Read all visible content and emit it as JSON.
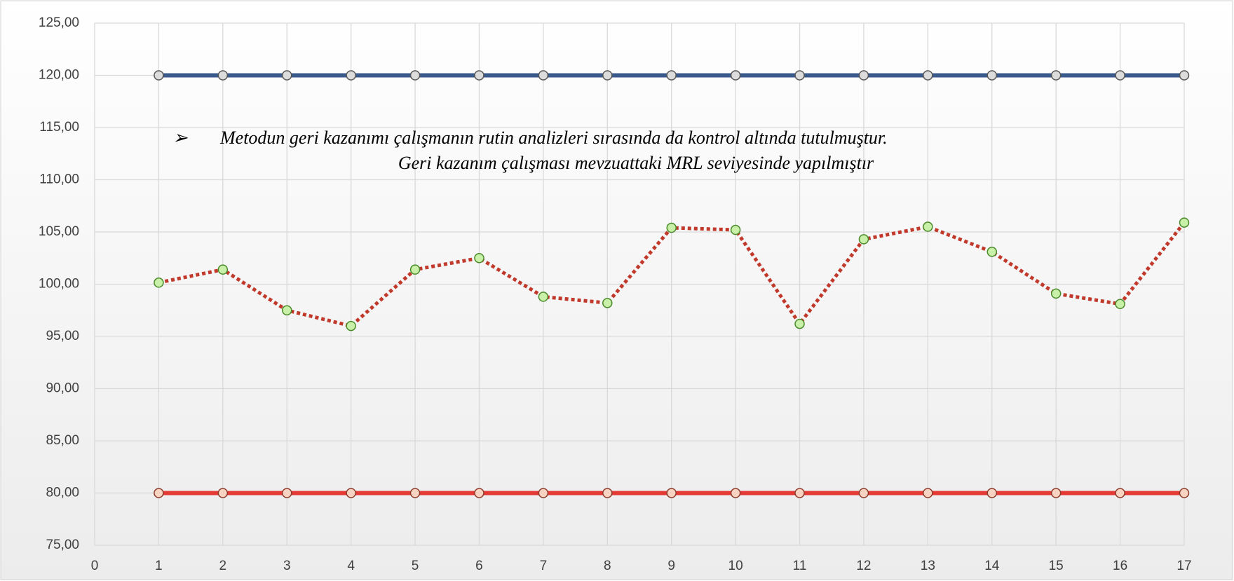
{
  "chart_data": {
    "type": "line",
    "annotation": {
      "bullet": "➢",
      "lines": [
        "Metodun geri kazanımı çalışmanın rutin analizleri sırasında da kontrol altında tutulmuştur.",
        "Geri  kazanım çalışması mevzuattaki MRL seviyesinde yapılmıştır"
      ]
    },
    "x": [
      1,
      2,
      3,
      4,
      5,
      6,
      7,
      8,
      9,
      10,
      11,
      12,
      13,
      14,
      15,
      16,
      17
    ],
    "series": [
      {
        "color": "#3b5a8c",
        "style": "solid",
        "marker_fill": "#dcdcdc",
        "marker_stroke": "#555555",
        "values": [
          120,
          120,
          120,
          120,
          120,
          120,
          120,
          120,
          120,
          120,
          120,
          120,
          120,
          120,
          120,
          120,
          120
        ]
      },
      {
        "color": "#e53935",
        "style": "solid",
        "marker_fill": "#f9d3c2",
        "marker_stroke": "#8b3a2a",
        "values": [
          80,
          80,
          80,
          80,
          80,
          80,
          80,
          80,
          80,
          80,
          80,
          80,
          80,
          80,
          80,
          80,
          80
        ]
      },
      {
        "color": "#c0392b",
        "style": "dotted",
        "marker_fill": "#c9f0a8",
        "marker_stroke": "#4a8a2a",
        "values": [
          100.15,
          101.4,
          97.5,
          96.0,
          101.4,
          102.5,
          98.8,
          98.2,
          105.4,
          105.2,
          96.2,
          104.3,
          105.5,
          103.1,
          99.1,
          98.1,
          105.9
        ]
      }
    ],
    "xlim": [
      0,
      17
    ],
    "xticks": [
      0,
      1,
      2,
      3,
      4,
      5,
      6,
      7,
      8,
      9,
      10,
      11,
      12,
      13,
      14,
      15,
      16,
      17
    ],
    "ylim": [
      75,
      125
    ],
    "yticks": [
      {
        "value": 75,
        "label": "75,00"
      },
      {
        "value": 80,
        "label": "80,00"
      },
      {
        "value": 85,
        "label": "85,00"
      },
      {
        "value": 90,
        "label": "90,00"
      },
      {
        "value": 95,
        "label": "95,00"
      },
      {
        "value": 100,
        "label": "100,00"
      },
      {
        "value": 105,
        "label": "105,00"
      },
      {
        "value": 110,
        "label": "110,00"
      },
      {
        "value": 115,
        "label": "115,00"
      },
      {
        "value": 120,
        "label": "120,00"
      },
      {
        "value": 125,
        "label": "125,00"
      }
    ],
    "grid": true
  }
}
